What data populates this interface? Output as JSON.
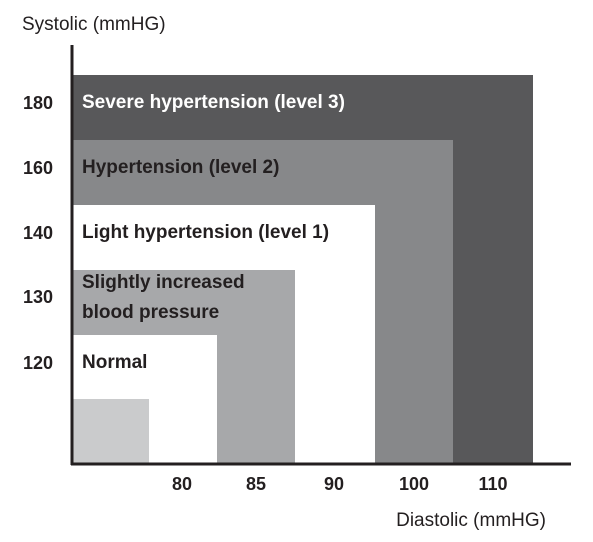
{
  "chart_data": {
    "type": "area",
    "title": "",
    "ylabel": "Systolic (mmHG)",
    "xlabel": "Diastolic (mmHG)",
    "y_ticks": [
      "120",
      "130",
      "140",
      "160",
      "180"
    ],
    "x_ticks": [
      "80",
      "85",
      "90",
      "100",
      "110"
    ],
    "zones": [
      {
        "label_lines": [
          "Severe hypertension (level 3)"
        ],
        "systolic_max": "180",
        "diastolic_max": "110",
        "color": "#58585a",
        "text_color": "#ffffff"
      },
      {
        "label_lines": [
          "Hypertension (level 2)"
        ],
        "systolic_max": "160",
        "diastolic_max": "100",
        "color": "#87888a",
        "text_color": "#231f20"
      },
      {
        "label_lines": [
          "Light hypertension (level 1)"
        ],
        "systolic_max": "140",
        "diastolic_max": "90",
        "color": "#ffffff",
        "text_color": "#231f20"
      },
      {
        "label_lines": [
          "Slightly increased",
          "blood pressure"
        ],
        "systolic_max": "130",
        "diastolic_max": "85",
        "color": "#a7a8aa",
        "text_color": "#231f20"
      },
      {
        "label_lines": [
          "Normal"
        ],
        "systolic_max": "120",
        "diastolic_max": "80",
        "color": "#ffffff",
        "text_color": "#231f20"
      },
      {
        "label_lines": [],
        "systolic_max": "",
        "diastolic_max": "",
        "color": "#cacbcc",
        "text_color": "#231f20"
      }
    ],
    "grid": false,
    "legend": "none"
  }
}
